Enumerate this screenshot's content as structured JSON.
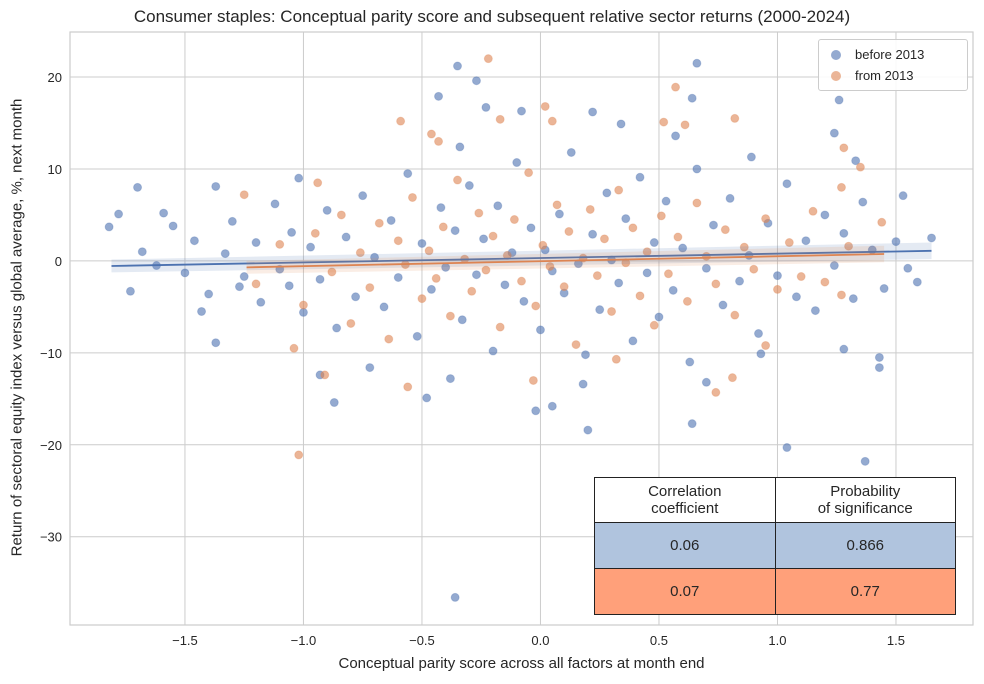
{
  "chart_data": {
    "type": "scatter",
    "title": "Consumer staples: Conceptual parity score and subsequent relative sector returns (2000-2024)",
    "xlabel": "Conceptual parity score across all factors at month end",
    "ylabel": "Return of sectoral equity index versus global average, %, next month",
    "xlim": [
      -1.985,
      1.825
    ],
    "ylim": [
      -39.6,
      24.9
    ],
    "xticks": [
      -1.5,
      -1.0,
      -0.5,
      0.0,
      0.5,
      1.0,
      1.5
    ],
    "xtick_labels": [
      "−1.5",
      "−1.0",
      "−0.5",
      "0.0",
      "0.5",
      "1.0",
      "1.5"
    ],
    "yticks": [
      20,
      10,
      0,
      -10,
      -20,
      -30
    ],
    "ytick_labels": [
      "20",
      "10",
      "0",
      "−10",
      "−20",
      "−30"
    ],
    "grid": true,
    "legend_placement": "top-right",
    "series": [
      {
        "name": "before 2013",
        "color": "#4c72b0",
        "regression": {
          "x": [
            -1.81,
            1.65
          ],
          "y": [
            -0.55,
            1.1
          ]
        },
        "points": [
          [
            -0.35,
            21.2
          ],
          [
            0.66,
            21.5
          ],
          [
            1.26,
            17.5
          ],
          [
            -0.27,
            19.6
          ],
          [
            -0.43,
            17.9
          ],
          [
            -0.36,
            -36.6
          ],
          [
            1.37,
            -21.8
          ],
          [
            1.04,
            -20.3
          ],
          [
            0.2,
            -18.4
          ],
          [
            -0.02,
            -16.3
          ],
          [
            0.05,
            -15.8
          ],
          [
            0.64,
            -17.7
          ],
          [
            -0.87,
            -15.4
          ],
          [
            -0.48,
            -14.9
          ],
          [
            -1.82,
            3.7
          ],
          [
            -1.78,
            5.1
          ],
          [
            -1.7,
            8.0
          ],
          [
            -1.73,
            -3.3
          ],
          [
            -1.59,
            5.2
          ],
          [
            -1.5,
            -1.3
          ],
          [
            -1.43,
            -5.5
          ],
          [
            -1.37,
            -8.9
          ],
          [
            -1.37,
            8.1
          ],
          [
            -1.02,
            9.0
          ],
          [
            1.43,
            -10.5
          ],
          [
            1.43,
            -11.6
          ],
          [
            1.28,
            -9.6
          ],
          [
            1.53,
            7.1
          ],
          [
            1.65,
            2.5
          ],
          [
            1.59,
            -2.3
          ],
          [
            1.24,
            13.9
          ],
          [
            1.33,
            10.9
          ],
          [
            0.57,
            13.6
          ],
          [
            0.64,
            17.7
          ],
          [
            -0.08,
            16.3
          ],
          [
            0.22,
            16.2
          ],
          [
            -0.23,
            16.7
          ],
          [
            -0.34,
            12.4
          ],
          [
            0.34,
            14.9
          ],
          [
            0.89,
            11.3
          ],
          [
            0.7,
            -13.2
          ],
          [
            0.93,
            -10.1
          ],
          [
            0.18,
            -13.4
          ],
          [
            -0.38,
            -12.8
          ],
          [
            -0.72,
            -11.6
          ],
          [
            -0.93,
            -12.4
          ],
          [
            -1.25,
            -1.7
          ],
          [
            -1.06,
            -2.7
          ],
          [
            -1.68,
            1.0
          ],
          [
            -1.62,
            -0.5
          ],
          [
            -1.55,
            3.8
          ],
          [
            -1.46,
            2.2
          ],
          [
            -1.4,
            -3.6
          ],
          [
            -1.33,
            0.8
          ],
          [
            -1.3,
            4.3
          ],
          [
            -1.27,
            -2.8
          ],
          [
            -1.2,
            2.0
          ],
          [
            -1.18,
            -4.5
          ],
          [
            -1.12,
            6.2
          ],
          [
            -1.1,
            -0.9
          ],
          [
            -1.05,
            3.1
          ],
          [
            -1.0,
            -5.6
          ],
          [
            -0.97,
            1.5
          ],
          [
            -0.93,
            -2.0
          ],
          [
            -0.9,
            5.5
          ],
          [
            -0.86,
            -7.3
          ],
          [
            -0.82,
            2.6
          ],
          [
            -0.78,
            -3.9
          ],
          [
            -0.75,
            7.1
          ],
          [
            -0.7,
            0.4
          ],
          [
            -0.66,
            -5.0
          ],
          [
            -0.63,
            4.4
          ],
          [
            -0.6,
            -1.8
          ],
          [
            -0.56,
            9.5
          ],
          [
            -0.52,
            -8.2
          ],
          [
            -0.5,
            1.9
          ],
          [
            -0.46,
            -3.1
          ],
          [
            -0.42,
            5.8
          ],
          [
            -0.4,
            -0.7
          ],
          [
            -0.36,
            3.3
          ],
          [
            -0.33,
            -6.4
          ],
          [
            -0.3,
            8.2
          ],
          [
            -0.27,
            -1.5
          ],
          [
            -0.24,
            2.4
          ],
          [
            -0.2,
            -9.8
          ],
          [
            -0.18,
            6.0
          ],
          [
            -0.15,
            -2.6
          ],
          [
            -0.12,
            0.9
          ],
          [
            -0.1,
            10.7
          ],
          [
            -0.07,
            -4.4
          ],
          [
            -0.04,
            3.6
          ],
          [
            0.0,
            -7.5
          ],
          [
            0.02,
            1.2
          ],
          [
            0.05,
            -1.1
          ],
          [
            0.08,
            5.1
          ],
          [
            0.1,
            -3.5
          ],
          [
            0.13,
            11.8
          ],
          [
            0.16,
            -0.3
          ],
          [
            0.19,
            -10.2
          ],
          [
            0.22,
            2.9
          ],
          [
            0.25,
            -5.3
          ],
          [
            0.28,
            7.4
          ],
          [
            0.3,
            0.1
          ],
          [
            0.33,
            -2.4
          ],
          [
            0.36,
            4.6
          ],
          [
            0.39,
            -8.7
          ],
          [
            0.42,
            9.1
          ],
          [
            0.45,
            -1.3
          ],
          [
            0.48,
            2.0
          ],
          [
            0.5,
            -6.1
          ],
          [
            0.53,
            6.5
          ],
          [
            0.56,
            -3.2
          ],
          [
            0.6,
            1.4
          ],
          [
            0.63,
            -11.0
          ],
          [
            0.66,
            10.0
          ],
          [
            0.7,
            -0.8
          ],
          [
            0.73,
            3.9
          ],
          [
            0.77,
            -4.8
          ],
          [
            0.8,
            6.8
          ],
          [
            0.84,
            -2.2
          ],
          [
            0.88,
            0.6
          ],
          [
            0.92,
            -7.9
          ],
          [
            0.96,
            4.1
          ],
          [
            1.0,
            -1.6
          ],
          [
            1.04,
            8.4
          ],
          [
            1.08,
            -3.9
          ],
          [
            1.12,
            2.2
          ],
          [
            1.16,
            -5.4
          ],
          [
            1.2,
            5.0
          ],
          [
            1.24,
            -0.5
          ],
          [
            1.28,
            3.0
          ],
          [
            1.32,
            -4.1
          ],
          [
            1.36,
            6.4
          ],
          [
            1.4,
            1.2
          ],
          [
            1.45,
            -3.0
          ],
          [
            1.5,
            2.1
          ],
          [
            1.55,
            -0.8
          ]
        ]
      },
      {
        "name": "from 2013",
        "color": "#dd8452",
        "regression": {
          "x": [
            -1.24,
            1.45
          ],
          "y": [
            -0.7,
            0.75
          ]
        },
        "points": [
          [
            -0.22,
            22.0
          ],
          [
            0.57,
            18.9
          ],
          [
            0.05,
            15.2
          ],
          [
            -0.17,
            15.4
          ],
          [
            -0.59,
            15.2
          ],
          [
            0.82,
            15.5
          ],
          [
            -0.43,
            13.0
          ],
          [
            0.52,
            15.1
          ],
          [
            0.61,
            14.8
          ],
          [
            -1.02,
            -21.1
          ],
          [
            0.74,
            -14.3
          ],
          [
            0.81,
            -12.7
          ],
          [
            -0.03,
            -13.0
          ],
          [
            -0.56,
            -13.7
          ],
          [
            -0.91,
            -12.4
          ],
          [
            -1.04,
            -9.5
          ],
          [
            -1.25,
            7.2
          ],
          [
            1.27,
            8.0
          ],
          [
            1.28,
            12.3
          ],
          [
            1.35,
            10.2
          ],
          [
            1.27,
            -3.7
          ],
          [
            1.44,
            4.2
          ],
          [
            -0.94,
            8.5
          ],
          [
            -0.46,
            13.8
          ],
          [
            0.95,
            -9.2
          ],
          [
            0.32,
            -10.7
          ],
          [
            0.02,
            16.8
          ],
          [
            -1.2,
            -2.5
          ],
          [
            -1.1,
            1.8
          ],
          [
            -1.0,
            -4.8
          ],
          [
            -0.95,
            3.0
          ],
          [
            -0.88,
            -1.2
          ],
          [
            -0.84,
            5.0
          ],
          [
            -0.8,
            -6.8
          ],
          [
            -0.76,
            0.9
          ],
          [
            -0.72,
            -2.9
          ],
          [
            -0.68,
            4.1
          ],
          [
            -0.64,
            -8.5
          ],
          [
            -0.6,
            2.2
          ],
          [
            -0.57,
            -0.4
          ],
          [
            -0.54,
            6.9
          ],
          [
            -0.5,
            -4.1
          ],
          [
            -0.47,
            1.1
          ],
          [
            -0.44,
            -1.9
          ],
          [
            -0.41,
            3.7
          ],
          [
            -0.38,
            -6.0
          ],
          [
            -0.35,
            8.8
          ],
          [
            -0.32,
            0.2
          ],
          [
            -0.29,
            -3.3
          ],
          [
            -0.26,
            5.2
          ],
          [
            -0.23,
            -1.0
          ],
          [
            -0.2,
            2.7
          ],
          [
            -0.17,
            -7.2
          ],
          [
            -0.14,
            0.6
          ],
          [
            -0.11,
            4.5
          ],
          [
            -0.08,
            -2.2
          ],
          [
            -0.05,
            9.6
          ],
          [
            -0.02,
            -4.9
          ],
          [
            0.01,
            1.7
          ],
          [
            0.04,
            -0.6
          ],
          [
            0.07,
            6.1
          ],
          [
            0.1,
            -2.8
          ],
          [
            0.12,
            3.2
          ],
          [
            0.15,
            -9.1
          ],
          [
            0.18,
            0.3
          ],
          [
            0.21,
            5.6
          ],
          [
            0.24,
            -1.6
          ],
          [
            0.27,
            2.4
          ],
          [
            0.3,
            -5.5
          ],
          [
            0.33,
            7.7
          ],
          [
            0.36,
            -0.2
          ],
          [
            0.39,
            3.6
          ],
          [
            0.42,
            -3.8
          ],
          [
            0.45,
            1.0
          ],
          [
            0.48,
            -7.0
          ],
          [
            0.51,
            4.9
          ],
          [
            0.54,
            -1.4
          ],
          [
            0.58,
            2.6
          ],
          [
            0.62,
            -4.4
          ],
          [
            0.66,
            6.3
          ],
          [
            0.7,
            0.5
          ],
          [
            0.74,
            -2.5
          ],
          [
            0.78,
            3.4
          ],
          [
            0.82,
            -5.9
          ],
          [
            0.86,
            1.5
          ],
          [
            0.9,
            -0.9
          ],
          [
            0.95,
            4.6
          ],
          [
            1.0,
            -3.1
          ],
          [
            1.05,
            2.0
          ],
          [
            1.1,
            -1.7
          ],
          [
            1.15,
            5.4
          ],
          [
            1.2,
            -2.3
          ],
          [
            1.3,
            1.6
          ]
        ]
      }
    ],
    "table": {
      "headers": [
        "Correlation\ncoefficient",
        "Probability\nof significance"
      ],
      "rows": [
        {
          "values": [
            "0.06",
            "0.866"
          ],
          "color": "#b0c4de"
        },
        {
          "values": [
            "0.07",
            "0.77"
          ],
          "color": "#ffa07a"
        }
      ]
    }
  }
}
